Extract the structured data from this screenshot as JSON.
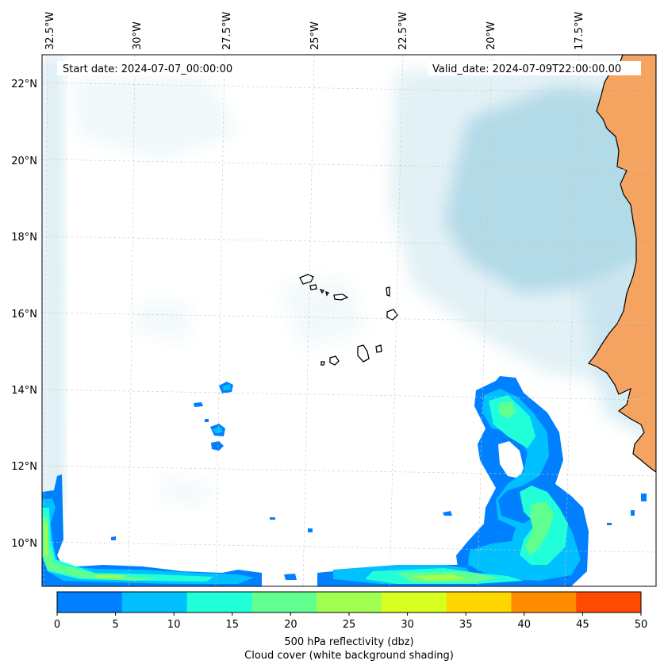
{
  "map": {
    "start_label": "Start date: 2024-07-07_00:00:00",
    "valid_label": "Valid_date: 2024-07-09T22:00:00.00",
    "lon_ticks": [
      "32.5°W",
      "30°W",
      "27.5°W",
      "25°W",
      "22.5°W",
      "20°W",
      "17.5°W"
    ],
    "lat_ticks": [
      "22°N",
      "20°N",
      "18°N",
      "16°N",
      "14°N",
      "12°N",
      "10°N"
    ],
    "land_color": "#f4a460",
    "cloud_color": "#add8e6",
    "gridlines": true
  },
  "colorbar": {
    "ticks": [
      "0",
      "5",
      "10",
      "15",
      "20",
      "25",
      "30",
      "35",
      "40",
      "45",
      "50"
    ],
    "colors": [
      "#0080ff",
      "#00c0ff",
      "#20ffd8",
      "#60ff90",
      "#a0ff50",
      "#d8ff20",
      "#ffd700",
      "#ff8c00",
      "#ff4a00"
    ],
    "label_line1": "500 hPa reflectivity (dbz)",
    "label_line2": "Cloud cover (white background shading)"
  }
}
